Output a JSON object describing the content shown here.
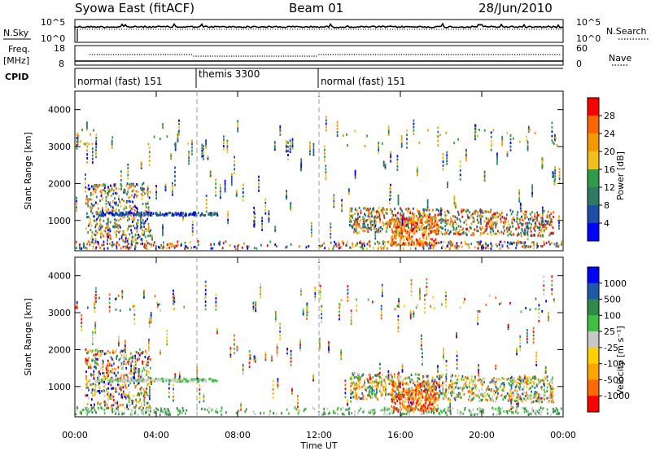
{
  "header": {
    "station": "Syowa East (fitACF)",
    "beam": "Beam 01",
    "date": "28/Jun/2010"
  },
  "top_panel": {
    "left_label": "N.Sky",
    "right_label": "N.Search",
    "left_ticks": [
      "10^5",
      "10^0"
    ],
    "right_ticks": [
      "10^5",
      "10^0"
    ]
  },
  "freq_panel": {
    "left_label_1": "Freq.",
    "left_label_2": "[MHz]",
    "right_label": "Nave",
    "left_ticks": [
      "18",
      "8"
    ],
    "right_ticks": [
      "60",
      "0"
    ]
  },
  "cpid_panel": {
    "label": "CPID",
    "modes": [
      {
        "name": "normal (fast) 151",
        "start_hour": 0,
        "end_hour": 6
      },
      {
        "name": "themis 3300",
        "start_hour": 6,
        "end_hour": 12
      },
      {
        "name": "normal (fast) 151",
        "start_hour": 12,
        "end_hour": 24
      }
    ]
  },
  "colors": {
    "power": [
      "#0000ff",
      "#1e4fa8",
      "#2f7a62",
      "#2f9a47",
      "#f0c020",
      "#f59a00",
      "#ff6600",
      "#ff0000"
    ],
    "velocity": [
      "#ff0000",
      "#ff6a00",
      "#ffa500",
      "#ffd000",
      "#c8c8c8",
      "#40c040",
      "#2f8a4a",
      "#1e5aa8",
      "#0000ff"
    ]
  },
  "chart_data": [
    {
      "type": "heatmap",
      "panel": "power",
      "ylabel": "Slant Range [km]",
      "xlim_hours": [
        0,
        24
      ],
      "ylim": [
        180,
        4500
      ],
      "yticks": [
        1000,
        2000,
        3000,
        4000
      ],
      "colorbar": {
        "label": "Power [dB]",
        "range": [
          0,
          32
        ],
        "ticks": [
          28,
          24,
          20,
          16,
          12,
          8,
          4
        ]
      }
    },
    {
      "type": "heatmap",
      "panel": "velocity",
      "ylabel": "Slant Range [km]",
      "xlim_hours": [
        0,
        24
      ],
      "ylim": [
        180,
        4500
      ],
      "yticks": [
        1000,
        2000,
        3000,
        4000
      ],
      "colorbar": {
        "label": "Velocity [m s⁻¹]",
        "ticks": [
          1000,
          500,
          100,
          25,
          -25,
          -100,
          -500,
          -1000
        ]
      }
    }
  ],
  "xaxis": {
    "label": "Time UT",
    "ticks": [
      {
        "hour": 0,
        "label": "00:00"
      },
      {
        "hour": 4,
        "label": "04:00"
      },
      {
        "hour": 8,
        "label": "08:00"
      },
      {
        "hour": 12,
        "label": "12:00"
      },
      {
        "hour": 16,
        "label": "16:00"
      },
      {
        "hour": 20,
        "label": "20:00"
      },
      {
        "hour": 24,
        "label": "00:00"
      }
    ]
  }
}
